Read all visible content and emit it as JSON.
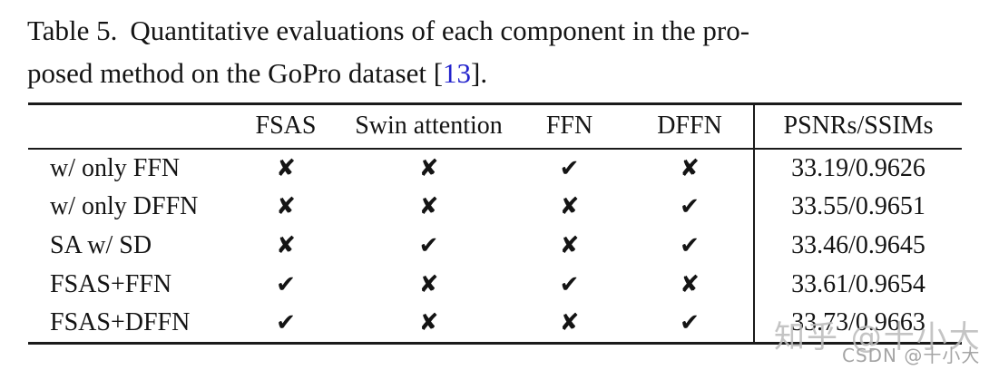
{
  "caption": {
    "label": "Table 5.",
    "line1": "Quantitative evaluations of each component in the pro-",
    "line2_before": "posed method on the GoPro dataset [",
    "citation": "13",
    "line2_after": "]."
  },
  "table": {
    "header": [
      "",
      "FSAS",
      "Swin attention",
      "FFN",
      "DFFN",
      "PSNRs/SSIMs"
    ],
    "rows": [
      {
        "label": "w/ only FFN",
        "marks": [
          "✘",
          "✘",
          "✔",
          "✘"
        ],
        "psnr_ssim": "33.19/0.9626"
      },
      {
        "label": "w/ only DFFN",
        "marks": [
          "✘",
          "✘",
          "✘",
          "✔"
        ],
        "psnr_ssim": "33.55/0.9651"
      },
      {
        "label": "SA w/ SD",
        "marks": [
          "✘",
          "✔",
          "✘",
          "✔"
        ],
        "psnr_ssim": "33.46/0.9645"
      },
      {
        "label": "FSAS+FFN",
        "marks": [
          "✔",
          "✘",
          "✔",
          "✘"
        ],
        "psnr_ssim": "33.61/0.9654"
      },
      {
        "label": "FSAS+DFFN",
        "marks": [
          "✔",
          "✘",
          "✘",
          "✔"
        ],
        "psnr_ssim": "33.73/0.9663"
      }
    ],
    "glyphs": {
      "check": "✔",
      "cross": "✘"
    }
  },
  "watermarks": {
    "zhihu": "知乎 @十小大",
    "csdn": "CSDN @十小大"
  },
  "colors": {
    "text": "#141414",
    "rule": "#1a1a1a",
    "citation_blue": "#2222cc",
    "watermark_primary": "#bcbcbc",
    "watermark_secondary": "#a0a0a0"
  }
}
